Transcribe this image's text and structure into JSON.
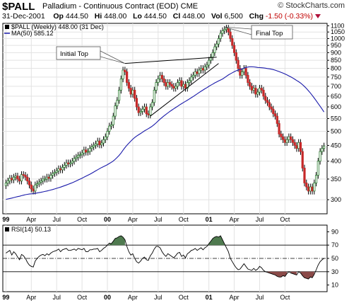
{
  "header": {
    "symbol": "$PALL",
    "subtitle": "Palladium - Continuous Contract (EOD)",
    "exchange": "CME",
    "brand": "© StockCharts.com",
    "date": "31-Dec-2001",
    "op_label": "Op",
    "op": "444.50",
    "hi_label": "Hi",
    "hi": "448.00",
    "lo_label": "Lo",
    "lo": "444.50",
    "cl_label": "Cl",
    "cl": "448.00",
    "vol_label": "Vol",
    "vol": "6,500",
    "chg_label": "Chg",
    "chg": "-1.50 (-0.33%)"
  },
  "colors": {
    "up": "#2e7d32",
    "down": "#c62828",
    "ma": "#1a1aaa",
    "rsi_over": "#4f7a4f",
    "rsi_under": "#8a4a48",
    "grid": "#e2e2e2"
  },
  "chart_data": [
    {
      "type": "candlestick",
      "scale": "log",
      "legend": [
        {
          "label": "$PALL (Weekly) 448.00 (31 Dec)",
          "marker": "black-square"
        },
        {
          "label": "MA(50) 585.12",
          "marker": "blue-line"
        }
      ],
      "legend_position": "top-left",
      "ylim": [
        270,
        1120
      ],
      "y_ticks": [
        300,
        350,
        400,
        450,
        500,
        550,
        600,
        650,
        700,
        750,
        800,
        850,
        900,
        950,
        1000,
        1050,
        1100
      ],
      "y_tick_labels": [
        "300",
        "350",
        "400",
        "450",
        "500",
        "550",
        "600",
        "650",
        "700",
        "750",
        "800",
        "850",
        "900",
        "950",
        "1000",
        "1050",
        "1100"
      ],
      "x_labels": [
        {
          "label": "99",
          "bold": true
        },
        {
          "label": "Apr",
          "bold": false
        },
        {
          "label": "Jul",
          "bold": false
        },
        {
          "label": "Oct",
          "bold": false
        },
        {
          "label": "00",
          "bold": true
        },
        {
          "label": "Apr",
          "bold": false
        },
        {
          "label": "Jul",
          "bold": false
        },
        {
          "label": "Oct",
          "bold": false
        },
        {
          "label": "01",
          "bold": true
        },
        {
          "label": "Apr",
          "bold": false
        },
        {
          "label": "Jul",
          "bold": false
        },
        {
          "label": "Oct",
          "bold": false
        }
      ],
      "grid": true,
      "annotations": [
        {
          "text": "Initial Top",
          "week": 61,
          "price": 830
        },
        {
          "text": "Final Top",
          "week": 112,
          "price": 1090
        }
      ],
      "trendlines": [
        {
          "from": [
            61,
            830
          ],
          "to": [
            108,
            870
          ]
        },
        {
          "from": [
            74,
            560
          ],
          "to": [
            109,
            830
          ]
        }
      ],
      "close": [
        340,
        345,
        352,
        348,
        355,
        358,
        350,
        345,
        362,
        360,
        355,
        345,
        335,
        325,
        320,
        335,
        338,
        342,
        345,
        350,
        350,
        355,
        352,
        360,
        365,
        368,
        372,
        378,
        375,
        382,
        388,
        395,
        392,
        395,
        400,
        408,
        412,
        418,
        420,
        425,
        435,
        428,
        430,
        440,
        445,
        450,
        455,
        465,
        452,
        458,
        470,
        480,
        500,
        520,
        525,
        560,
        605,
        630,
        680,
        740,
        790,
        780,
        720,
        690,
        660,
        680,
        640,
        600,
        575,
        580,
        590,
        600,
        570,
        565,
        600,
        620,
        680,
        720,
        740,
        760,
        740,
        720,
        700,
        720,
        710,
        700,
        690,
        700,
        720,
        730,
        700,
        710,
        690,
        720,
        730,
        750,
        760,
        780,
        770,
        790,
        800,
        790,
        810,
        820,
        850,
        870,
        900,
        940,
        960,
        1000,
        1040,
        1060,
        1070,
        1080,
        1050,
        1000,
        950,
        900,
        850,
        800,
        760,
        780,
        800,
        760,
        720,
        700,
        680,
        690,
        660,
        670,
        690,
        680,
        650,
        630,
        620,
        600,
        590,
        570,
        560,
        530,
        490,
        480,
        470,
        460,
        470,
        480,
        470,
        460,
        450,
        440,
        460,
        430,
        380,
        340,
        330,
        320,
        330,
        320,
        340,
        360,
        400,
        430,
        440,
        448
      ],
      "series": [
        {
          "name": "MA(50)",
          "last": 585.12
        }
      ]
    },
    {
      "type": "line",
      "legend": [
        {
          "label": "RSI(14) 50.13",
          "marker": "black-square"
        }
      ],
      "ylim": [
        0,
        100
      ],
      "y_ticks": [
        10,
        30,
        50,
        70,
        90
      ],
      "y_tick_labels": [
        "10",
        "30",
        "50",
        "70",
        "90"
      ],
      "reference_lines": [
        30,
        50,
        70
      ],
      "x_labels": [
        {
          "label": "99",
          "bold": true
        },
        {
          "label": "Apr",
          "bold": false
        },
        {
          "label": "Jul",
          "bold": false
        },
        {
          "label": "Oct",
          "bold": false
        },
        {
          "label": "00",
          "bold": true
        },
        {
          "label": "Apr",
          "bold": false
        },
        {
          "label": "Jul",
          "bold": false
        },
        {
          "label": "Oct",
          "bold": false
        },
        {
          "label": "01",
          "bold": true
        },
        {
          "label": "Apr",
          "bold": false
        },
        {
          "label": "Jul",
          "bold": false
        },
        {
          "label": "Oct",
          "bold": false
        }
      ],
      "values": [
        58,
        60,
        62,
        55,
        60,
        57,
        52,
        48,
        56,
        54,
        50,
        44,
        40,
        38,
        37,
        46,
        50,
        53,
        55,
        56,
        54,
        57,
        55,
        58,
        60,
        61,
        62,
        64,
        60,
        63,
        64,
        65,
        62,
        62,
        63,
        64,
        62,
        65,
        64,
        63,
        65,
        60,
        60,
        63,
        63,
        64,
        64,
        65,
        60,
        62,
        65,
        67,
        70,
        73,
        72,
        76,
        80,
        81,
        83,
        84,
        82,
        78,
        68,
        60,
        55,
        57,
        50,
        45,
        43,
        46,
        50,
        52,
        48,
        47,
        54,
        58,
        64,
        68,
        68,
        66,
        60,
        56,
        53,
        57,
        55,
        53,
        51,
        54,
        58,
        59,
        53,
        55,
        51,
        57,
        59,
        62,
        63,
        65,
        62,
        64,
        66,
        63,
        66,
        68,
        72,
        76,
        80,
        82,
        83,
        82,
        84,
        78,
        72,
        66,
        60,
        50,
        45,
        40,
        36,
        33,
        34,
        38,
        42,
        38,
        34,
        33,
        32,
        35,
        32,
        34,
        38,
        36,
        32,
        30,
        29,
        28,
        27,
        26,
        25,
        23,
        22,
        22,
        24,
        23,
        27,
        30,
        28,
        27,
        26,
        25,
        30,
        28,
        24,
        21,
        20,
        19,
        22,
        21,
        26,
        33,
        40,
        45,
        48,
        50.13
      ]
    }
  ]
}
